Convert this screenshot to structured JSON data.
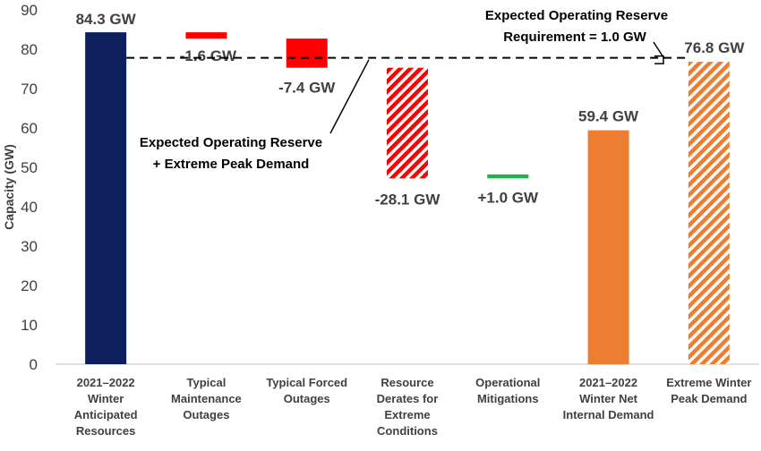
{
  "chart_data": {
    "type": "bar",
    "subtype": "waterfall",
    "ylabel": "Capacity (GW)",
    "ylim": [
      0,
      90
    ],
    "yticks": [
      0,
      10,
      20,
      30,
      40,
      50,
      60,
      70,
      80,
      90
    ],
    "grid": false,
    "categories": [
      [
        "2021–2022",
        "Winter",
        "Anticipated",
        "Resources"
      ],
      [
        "Typical",
        "Maintenance",
        "Outages"
      ],
      [
        "Typical Forced",
        "Outages"
      ],
      [
        "Resource",
        "Derates for",
        "Extreme",
        "Conditions"
      ],
      [
        "Operational",
        "Mitigations"
      ],
      [
        "2021–2022",
        "Winter Net",
        "Internal Demand"
      ],
      [
        "Extreme Winter",
        "Peak Demand"
      ]
    ],
    "bars": [
      {
        "bottom": 0,
        "top": 84.3,
        "value_label": "84.3 GW",
        "color": "#0d1f5c",
        "pattern": "solid"
      },
      {
        "bottom": 82.7,
        "top": 84.3,
        "value_label": "-1.6 GW",
        "color": "#ff0000",
        "pattern": "solid"
      },
      {
        "bottom": 75.3,
        "top": 82.7,
        "value_label": "-7.4 GW",
        "color": "#ff0000",
        "pattern": "solid"
      },
      {
        "bottom": 47.2,
        "top": 75.3,
        "value_label": "-28.1 GW",
        "color": "#ff0000",
        "pattern": "hatched"
      },
      {
        "bottom": 47.2,
        "top": 48.2,
        "value_label": "+1.0 GW",
        "color": "#22b04a",
        "pattern": "solid"
      },
      {
        "bottom": 0,
        "top": 59.4,
        "value_label": "59.4 GW",
        "color": "#ed7d31",
        "pattern": "solid"
      },
      {
        "bottom": 0,
        "top": 76.8,
        "value_label": "76.8 GW",
        "color": "#ed7d31",
        "pattern": "hatched"
      }
    ],
    "reference_line": {
      "value": 77.8,
      "style": "dashed",
      "color": "#000000"
    },
    "annotations": {
      "reserve_plus_demand": [
        "Expected Operating Reserve",
        "+ Extreme Peak Demand"
      ],
      "reserve_requirement": [
        "Expected Operating Reserve",
        "Requirement = 1.0 GW"
      ]
    }
  }
}
